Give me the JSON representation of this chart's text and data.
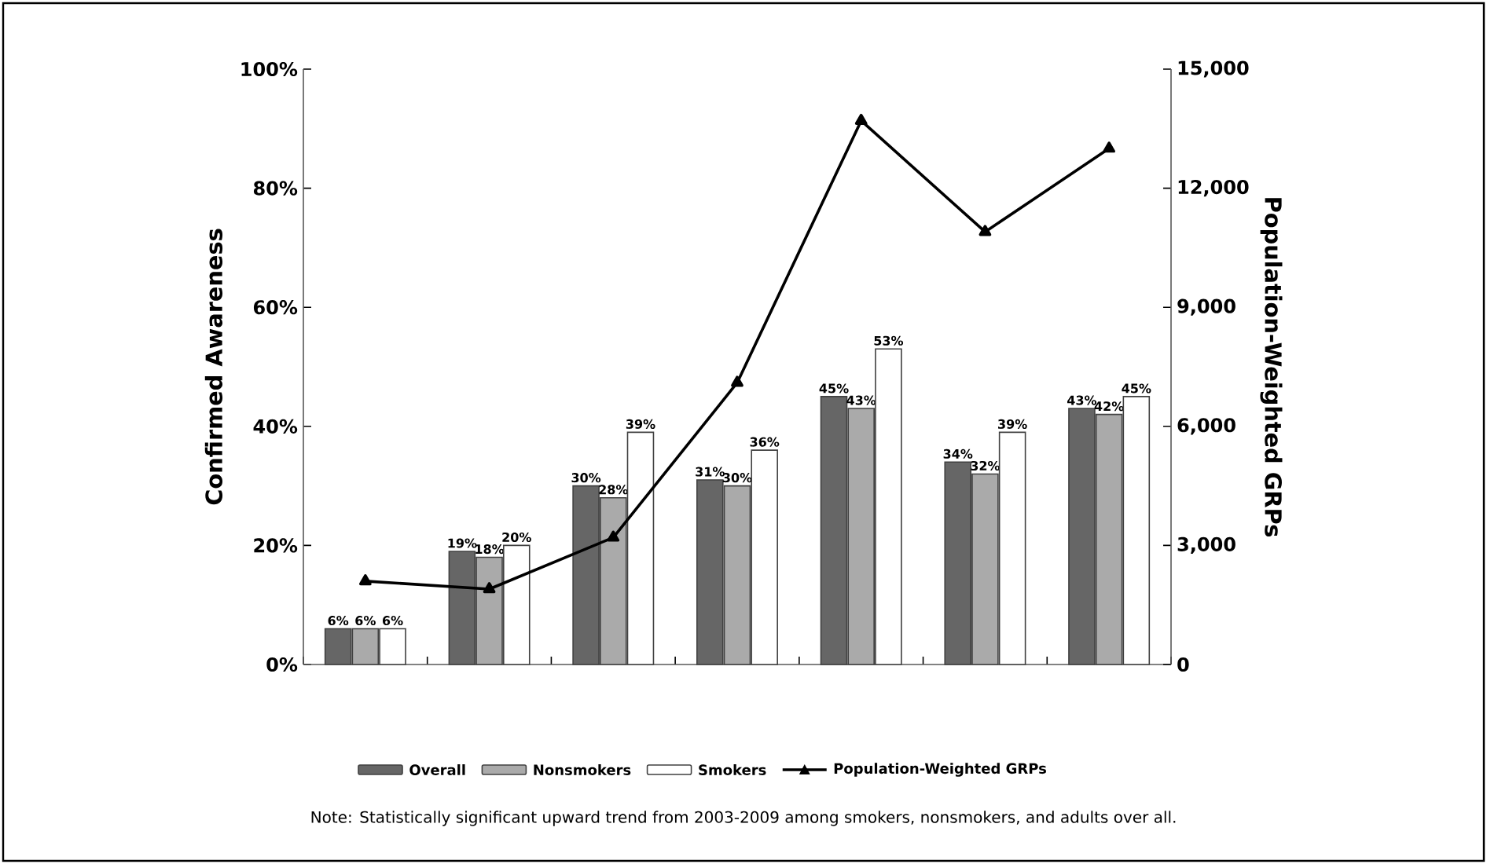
{
  "chart_data": {
    "type": "bar",
    "categories": [
      null,
      null,
      null,
      null,
      null,
      null,
      null
    ],
    "series": [
      {
        "name": "Overall",
        "color": "#666666",
        "values": [
          6,
          19,
          30,
          31,
          45,
          34,
          43
        ],
        "value_labels": [
          "6%",
          "19%",
          "30%",
          "31%",
          "45%",
          "34%",
          "43%"
        ]
      },
      {
        "name": "Nonsmokers",
        "color": "#aaaaaa",
        "values": [
          6,
          18,
          28,
          30,
          43,
          32,
          42
        ],
        "value_labels": [
          "6%",
          "18%",
          "28%",
          "30%",
          "43%",
          "32%",
          "42%"
        ]
      },
      {
        "name": "Smokers",
        "color": "#ffffff",
        "values": [
          6,
          20,
          39,
          36,
          53,
          39,
          45
        ],
        "value_labels": [
          "6%",
          "20%",
          "39%",
          "36%",
          "53%",
          "39%",
          "45%"
        ]
      },
      {
        "name": "Population-Weighted GRPs",
        "type": "line",
        "axis": "y2",
        "color": "#000000",
        "marker": "triangle",
        "line_style": "solid",
        "values": [
          2100,
          1900,
          3200,
          7100,
          13700,
          10900,
          13000
        ]
      }
    ],
    "ylabel": "Confirmed Awareness",
    "y2label": "Population-Weighted GRPs",
    "ylim": [
      0,
      100
    ],
    "yticks": [
      {
        "value": 0,
        "label": "0%"
      },
      {
        "value": 20,
        "label": "20%"
      },
      {
        "value": 40,
        "label": "40%"
      },
      {
        "value": 60,
        "label": "60%"
      },
      {
        "value": 80,
        "label": "80%"
      },
      {
        "value": 100,
        "label": "100%"
      }
    ],
    "y2lim": [
      0,
      15000
    ],
    "y2ticks": [
      {
        "value": 0,
        "label": "0"
      },
      {
        "value": 3000,
        "label": "3,000"
      },
      {
        "value": 6000,
        "label": "6,000"
      },
      {
        "value": 9000,
        "label": "9,000"
      },
      {
        "value": 12000,
        "label": "12,000"
      },
      {
        "value": 15000,
        "label": "15,000"
      }
    ],
    "legend": "bottom",
    "annotations": [
      "Note: Statistically significant upward trend from 2003-2009 among smokers, nonsmokers, and adults over all."
    ]
  }
}
